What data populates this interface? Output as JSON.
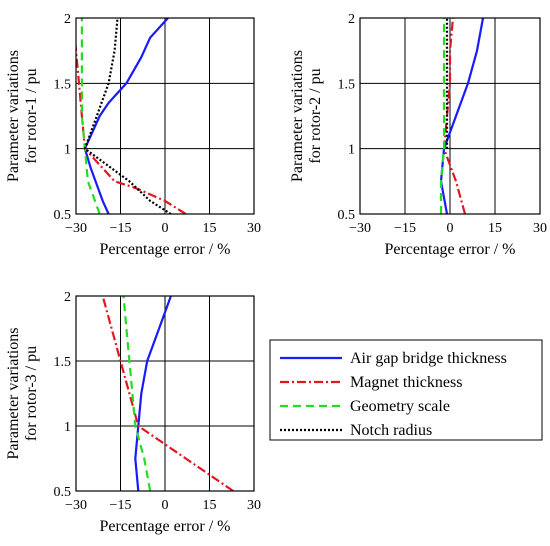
{
  "figure": {
    "legend": [
      {
        "key": "air_gap",
        "label": "Air gap bridge thickness",
        "color": "#1a1aff",
        "dash": "solid"
      },
      {
        "key": "magnet",
        "label": "Magnet thickness",
        "color": "#e6141e",
        "dash": "dashdot"
      },
      {
        "key": "geometry",
        "label": "Geometry scale",
        "color": "#22dd22",
        "dash": "dashed"
      },
      {
        "key": "notch",
        "label": "Notch radius",
        "color": "#000000",
        "dash": "dotted"
      }
    ]
  },
  "chart_data": [
    {
      "type": "line",
      "ylabel_line1": "Parameter variations",
      "ylabel_line2": "for rotor-1 / pu",
      "xlabel": "Percentage error / %",
      "xlim": [
        -30,
        30
      ],
      "ylim": [
        0.5,
        2
      ],
      "xticks": [
        "−30",
        "−15",
        "0",
        "15",
        "30"
      ],
      "yticks": [
        "0.5",
        "1",
        "1.5",
        "2"
      ],
      "grid": true,
      "series": [
        {
          "key": "air_gap",
          "points": [
            [
              -19,
              0.5
            ],
            [
              -21,
              0.6
            ],
            [
              -25,
              0.85
            ],
            [
              -27,
              1.0
            ],
            [
              -24,
              1.15
            ],
            [
              -22,
              1.25
            ],
            [
              -19,
              1.35
            ],
            [
              -13,
              1.5
            ],
            [
              -8,
              1.7
            ],
            [
              -5,
              1.85
            ],
            [
              1,
              2.0
            ]
          ]
        },
        {
          "key": "magnet",
          "points": [
            [
              7,
              0.5
            ],
            [
              0,
              0.6
            ],
            [
              -10,
              0.7
            ],
            [
              -17,
              0.75
            ],
            [
              -27,
              1.0
            ],
            [
              -28,
              1.25
            ],
            [
              -29,
              1.5
            ],
            [
              -30,
              1.75
            ],
            [
              -31,
              2.0
            ]
          ]
        },
        {
          "key": "geometry",
          "points": [
            [
              -22,
              0.5
            ],
            [
              -26,
              0.75
            ],
            [
              -27,
              1.0
            ],
            [
              -28,
              1.25
            ],
            [
              -28,
              1.5
            ],
            [
              -28,
              1.75
            ],
            [
              -28,
              2.0
            ]
          ]
        },
        {
          "key": "notch",
          "points": [
            [
              2,
              0.5
            ],
            [
              -5,
              0.6
            ],
            [
              -12,
              0.75
            ],
            [
              -27,
              1.0
            ],
            [
              -23,
              1.25
            ],
            [
              -19,
              1.5
            ],
            [
              -17,
              1.75
            ],
            [
              -16,
              2.0
            ]
          ]
        }
      ]
    },
    {
      "type": "line",
      "ylabel_line1": "Parameter variations",
      "ylabel_line2": "for rotor-2 / pu",
      "xlabel": "Percentage error / %",
      "xlim": [
        -30,
        30
      ],
      "ylim": [
        0.5,
        2
      ],
      "xticks": [
        "−30",
        "−15",
        "0",
        "15",
        "30"
      ],
      "yticks": [
        "0.5",
        "1",
        "1.5",
        "2"
      ],
      "grid": true,
      "series": [
        {
          "key": "air_gap",
          "points": [
            [
              -1,
              0.5
            ],
            [
              -3,
              0.75
            ],
            [
              -2,
              1.0
            ],
            [
              2,
              1.25
            ],
            [
              6,
              1.5
            ],
            [
              9,
              1.75
            ],
            [
              11,
              2.0
            ]
          ]
        },
        {
          "key": "magnet",
          "points": [
            [
              5,
              0.5
            ],
            [
              2,
              0.75
            ],
            [
              -2,
              1.0
            ],
            [
              -1,
              1.25
            ],
            [
              0,
              1.5
            ],
            [
              0,
              1.75
            ],
            [
              1,
              2.0
            ]
          ]
        },
        {
          "key": "geometry",
          "points": [
            [
              -3,
              0.5
            ],
            [
              -3,
              0.75
            ],
            [
              -2,
              1.0
            ],
            [
              -2,
              1.25
            ],
            [
              -2,
              1.5
            ],
            [
              -2,
              1.75
            ],
            [
              -2,
              2.0
            ]
          ]
        },
        {
          "key": "notch",
          "points": [
            [
              -1,
              1.0
            ],
            [
              -1,
              1.25
            ],
            [
              -1,
              1.5
            ],
            [
              -1,
              1.75
            ],
            [
              -1,
              2.0
            ]
          ]
        }
      ]
    },
    {
      "type": "line",
      "ylabel_line1": "Parameter variations",
      "ylabel_line2": "for rotor-3 / pu",
      "xlabel": "Percentage error / %",
      "xlim": [
        -30,
        30
      ],
      "ylim": [
        0.5,
        2
      ],
      "xticks": [
        "−30",
        "−15",
        "0",
        "15",
        "30"
      ],
      "yticks": [
        "0.5",
        "1",
        "1.5",
        "2"
      ],
      "grid": true,
      "series": [
        {
          "key": "air_gap",
          "points": [
            [
              -9,
              0.5
            ],
            [
              -10,
              0.75
            ],
            [
              -9,
              1.0
            ],
            [
              -8,
              1.25
            ],
            [
              -6,
              1.5
            ],
            [
              -2,
              1.75
            ],
            [
              2,
              2.0
            ]
          ]
        },
        {
          "key": "magnet",
          "points": [
            [
              23,
              0.5
            ],
            [
              7,
              0.75
            ],
            [
              -9,
              1.0
            ],
            [
              -12,
              1.25
            ],
            [
              -15,
              1.5
            ],
            [
              -18,
              1.75
            ],
            [
              -21,
              2.0
            ]
          ]
        },
        {
          "key": "geometry",
          "points": [
            [
              -5,
              0.5
            ],
            [
              -7,
              0.75
            ],
            [
              -10,
              1.0
            ],
            [
              -11,
              1.25
            ],
            [
              -12,
              1.5
            ],
            [
              -13,
              1.75
            ],
            [
              -14,
              2.0
            ]
          ]
        }
      ]
    }
  ]
}
